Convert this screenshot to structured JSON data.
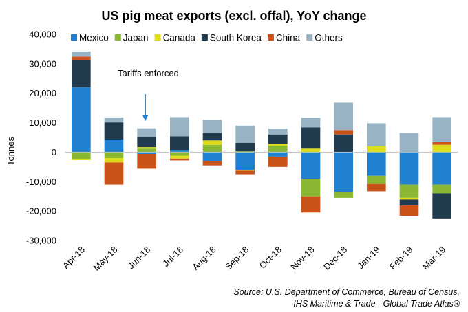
{
  "chart_data": {
    "type": "bar",
    "stacked": true,
    "title": "US pig meat exports (excl. offal), YoY change",
    "ylabel": "Tonnes",
    "ylim": [
      -30000,
      40000
    ],
    "yticks": [
      -30000,
      -20000,
      -10000,
      0,
      10000,
      20000,
      30000,
      40000
    ],
    "ytick_labels": [
      "-30,000",
      "-20,000",
      "-10,000",
      "0",
      "10,000",
      "20,000",
      "30,000",
      "40,000"
    ],
    "categories": [
      "Apr-18",
      "May-18",
      "Jun-18",
      "Jul-18",
      "Aug-18",
      "Sep-18",
      "Oct-18",
      "Nov-18",
      "Dec-18",
      "Jan-19",
      "Feb-19",
      "Mar-19"
    ],
    "legend_position": "top",
    "series": [
      {
        "name": "Mexico",
        "color": "#1f7fd0",
        "values": [
          22000,
          4300,
          -600,
          800,
          -3000,
          -6000,
          -1500,
          -9000,
          -13500,
          -8000,
          -11000,
          -11000
        ]
      },
      {
        "name": "Japan",
        "color": "#8ab833",
        "values": [
          -2400,
          -2000,
          1200,
          -1200,
          2500,
          300,
          2200,
          -6000,
          -2000,
          -2800,
          -4500,
          -3000
        ]
      },
      {
        "name": "Canada",
        "color": "#dddd1a",
        "values": [
          -300,
          -1500,
          500,
          -1000,
          1500,
          -300,
          600,
          1200,
          0,
          2000,
          -600,
          2500
        ]
      },
      {
        "name": "South Korea",
        "color": "#1f3b4d",
        "values": [
          9200,
          5800,
          3400,
          4600,
          2500,
          2900,
          3200,
          7200,
          6000,
          0,
          -2000,
          -8500
        ]
      },
      {
        "name": "China",
        "color": "#c95219",
        "values": [
          1200,
          -7500,
          -5000,
          -600,
          -1500,
          -1200,
          -3500,
          -5500,
          1500,
          -2500,
          -3500,
          900
        ]
      },
      {
        "name": "Others",
        "color": "#98b4c4",
        "values": [
          1800,
          1700,
          3000,
          6500,
          4500,
          5800,
          2000,
          3300,
          9300,
          7800,
          6500,
          8500
        ]
      }
    ],
    "annotation": {
      "text": "Tariffs enforced",
      "category": "Jun-18"
    }
  },
  "source": {
    "line1": "Source: U.S. Department of Commerce, Bureau of Census,",
    "line2": "IHS Maritime & Trade - Global Trade Atlas®"
  }
}
